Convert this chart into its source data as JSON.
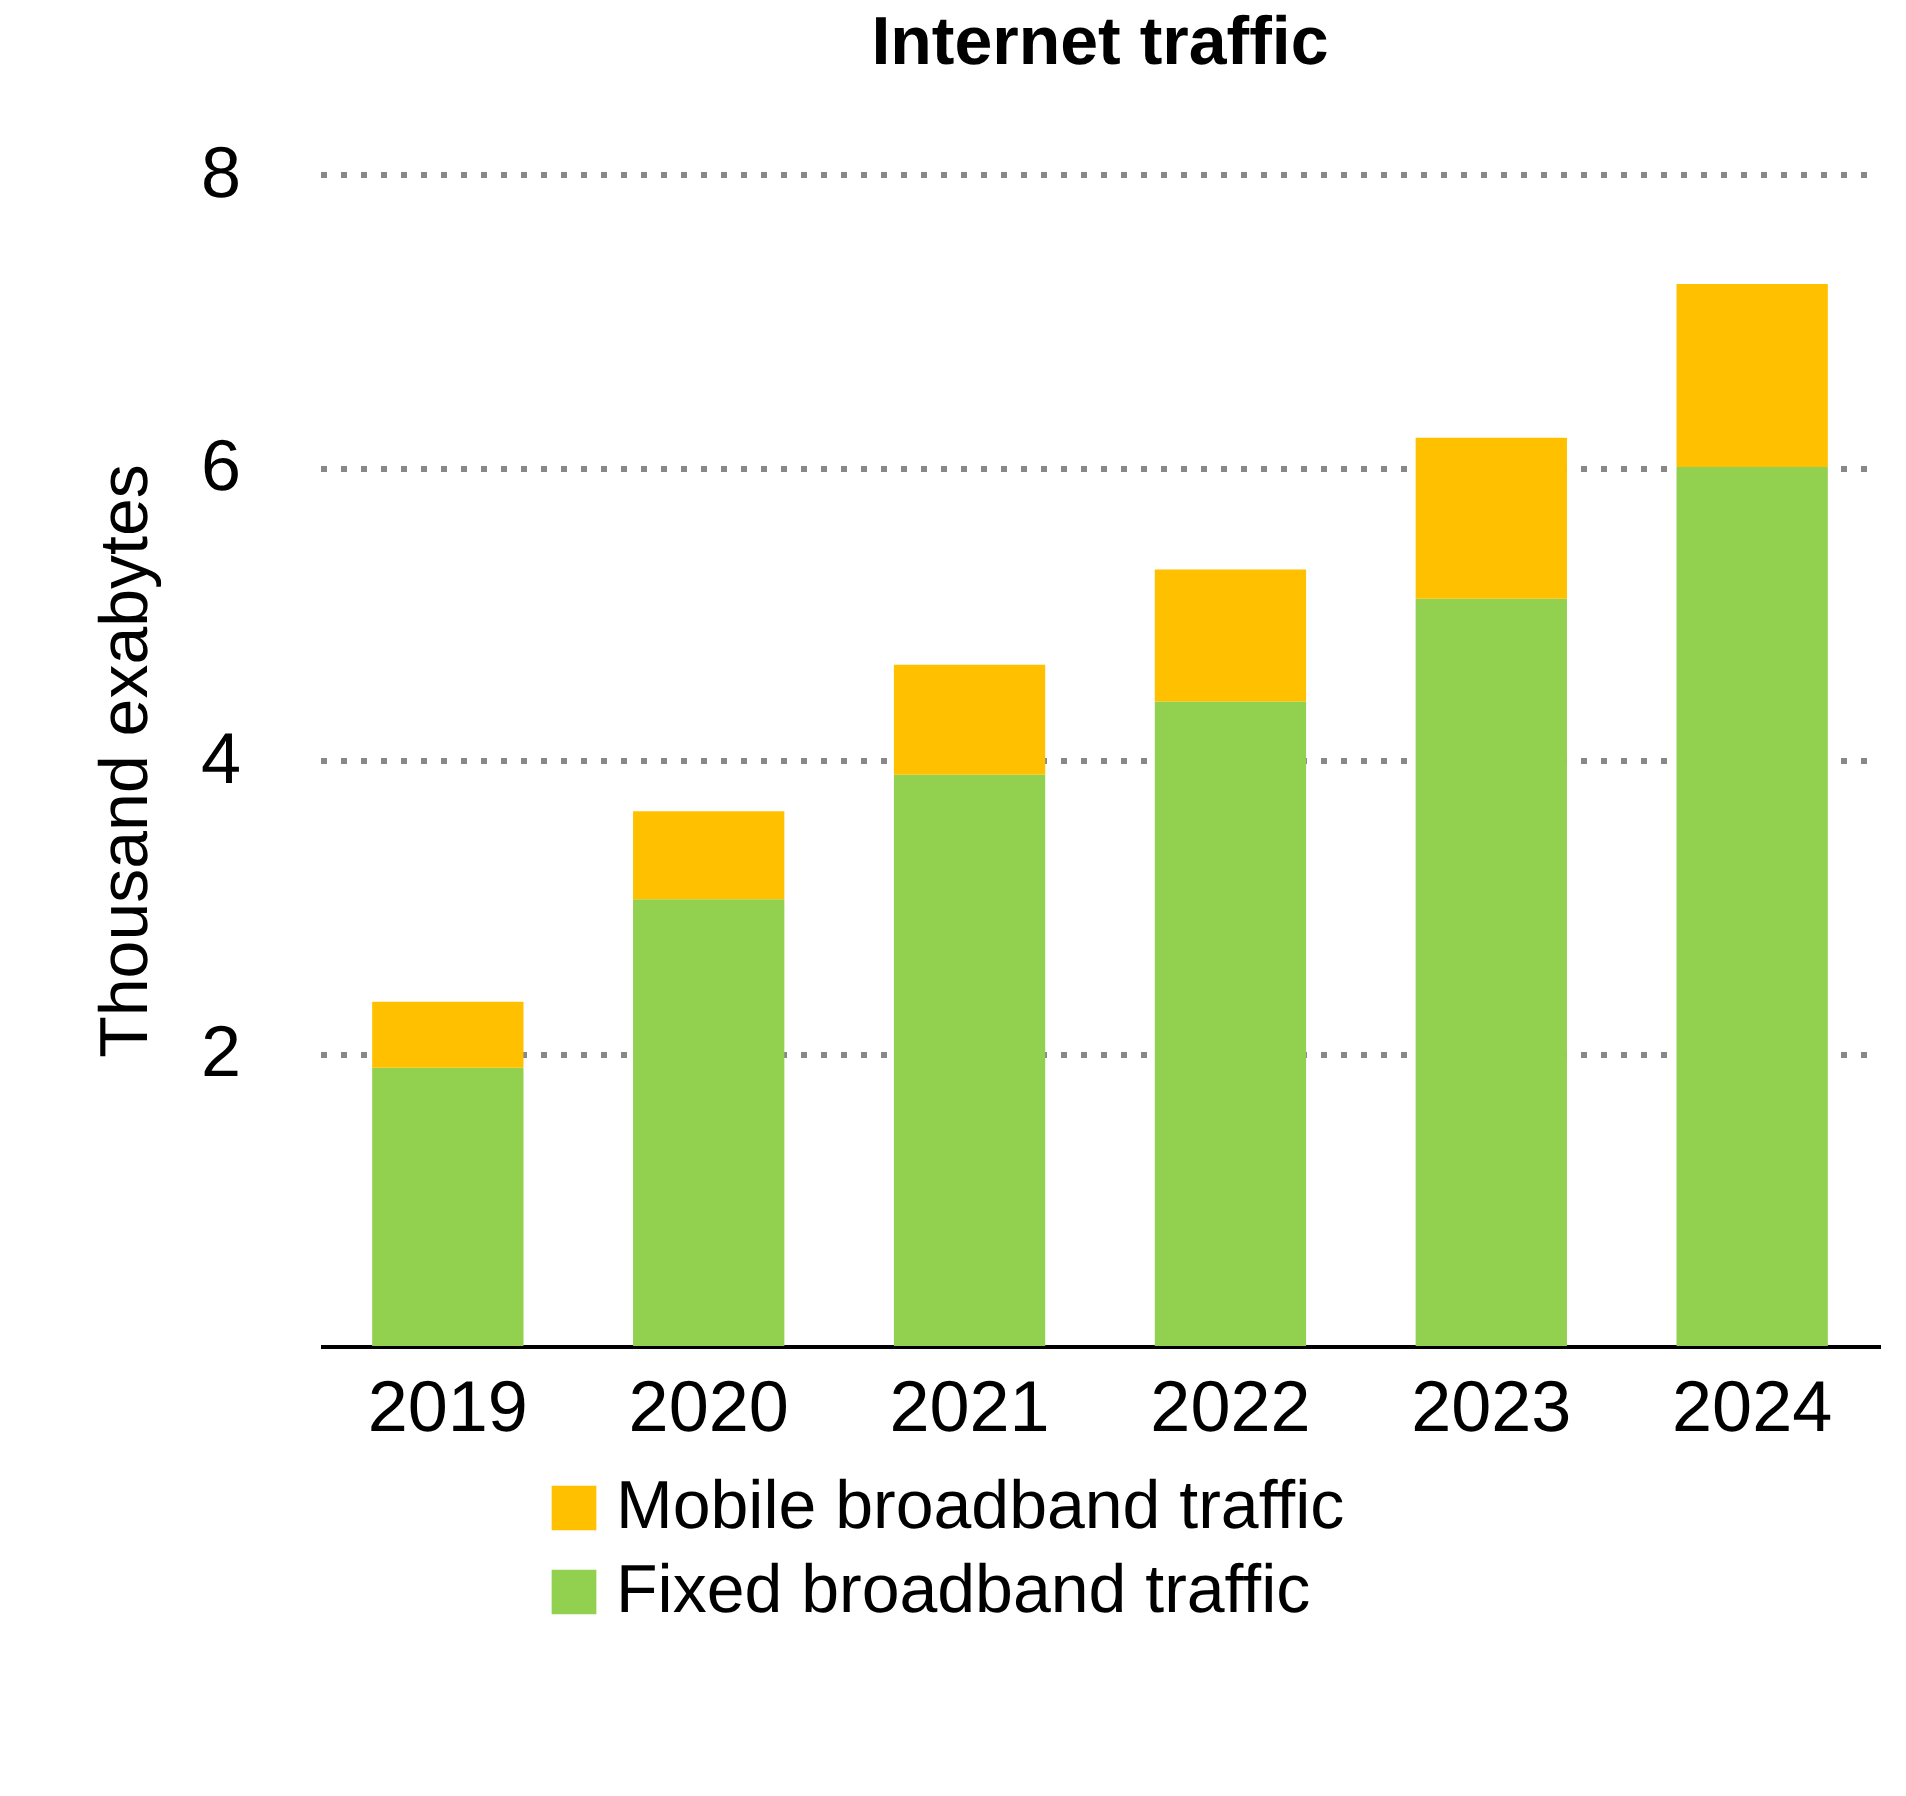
{
  "chart_data": {
    "type": "bar",
    "title": "Internet traffic",
    "ylabel": "Thousand exabytes",
    "categories": [
      "2019",
      "2020",
      "2021",
      "2022",
      "2023",
      "2024"
    ],
    "stacked": true,
    "series": [
      {
        "name": "Fixed broadband traffic",
        "color": "#92d050",
        "values": [
          1.9,
          3.05,
          3.9,
          4.4,
          5.1,
          6.0
        ]
      },
      {
        "name": "Mobile broadband traffic",
        "color": "#ffc000",
        "values": [
          0.45,
          0.6,
          0.75,
          0.9,
          1.1,
          1.25
        ]
      }
    ],
    "ylim": [
      0,
      8
    ],
    "yticks": [
      2,
      4,
      6,
      8
    ],
    "grid": "y",
    "legend": "bottom"
  }
}
